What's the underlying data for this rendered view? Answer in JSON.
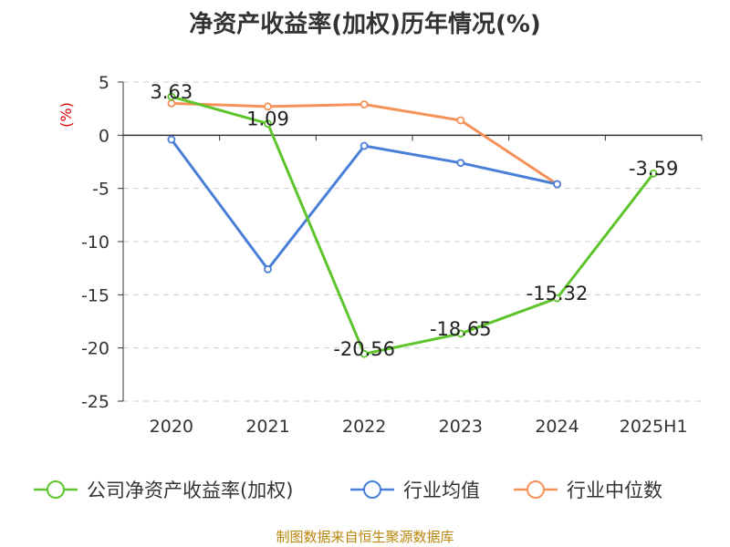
{
  "footer": {
    "source": "制图数据来自恒生聚源数据库"
  },
  "chart_data": {
    "type": "line",
    "title": "净资产收益率(加权)历年情况(%)",
    "unit": "(%)",
    "unit_color": "#e00000",
    "categories": [
      "2020",
      "2021",
      "2022",
      "2023",
      "2024",
      "2025H1"
    ],
    "ylim": [
      -25,
      5
    ],
    "yticks": [
      5,
      0,
      -5,
      -10,
      -15,
      -20,
      -25
    ],
    "grid": true,
    "legend_position": "bottom",
    "series": [
      {
        "name": "公司净资产收益率(加权)",
        "color": "#5ec42b",
        "values": [
          3.63,
          1.09,
          -20.56,
          -18.65,
          -15.32,
          -3.59
        ],
        "labels": [
          "3.63",
          "1.09",
          "-20.56",
          "-18.65",
          "-15.32",
          "-3.59"
        ]
      },
      {
        "name": "行业均值",
        "color": "#4a7fd8",
        "values": [
          -0.4,
          -12.6,
          -1.0,
          -2.6,
          -4.6,
          null
        ]
      },
      {
        "name": "行业中位数",
        "color": "#f5925a",
        "values": [
          3.0,
          2.7,
          2.9,
          1.4,
          -4.6,
          null
        ]
      }
    ]
  }
}
